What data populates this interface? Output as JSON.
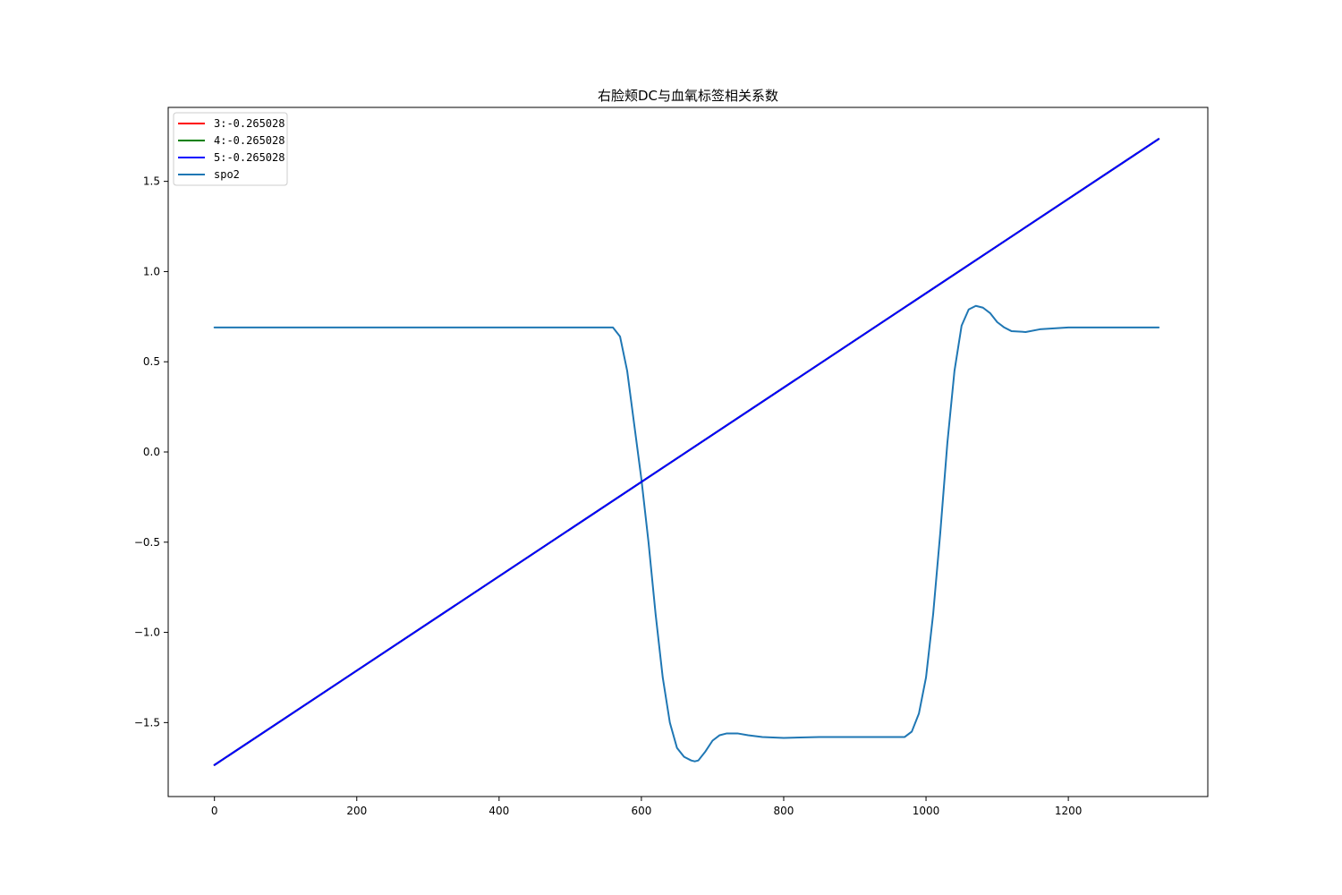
{
  "chart_data": {
    "type": "line",
    "title": "右脸颊DC与血氧标签相关系数",
    "xlabel": "",
    "ylabel": "",
    "xlim": [
      -65,
      1396
    ],
    "ylim": [
      -1.91,
      1.91
    ],
    "xticks": [
      0,
      200,
      400,
      600,
      800,
      1000,
      1200
    ],
    "xtick_labels": [
      "0",
      "200",
      "400",
      "600",
      "800",
      "1000",
      "1200"
    ],
    "yticks": [
      1.5,
      1.0,
      0.5,
      0.0,
      -0.5,
      -1.0,
      -1.5
    ],
    "ytick_labels": [
      "1.5",
      "1.0",
      "0.5",
      "0.0",
      "−0.5",
      "−1.0",
      "−1.5"
    ],
    "grid": false,
    "legend_position": "upper left",
    "series": [
      {
        "name": "3:-0.265028",
        "color": "#ff0000",
        "x": [
          0,
          1327
        ],
        "y": [
          -1.735,
          1.735
        ]
      },
      {
        "name": "4:-0.265028",
        "color": "#008000",
        "x": [
          0,
          1327
        ],
        "y": [
          -1.735,
          1.735
        ]
      },
      {
        "name": "5:-0.265028",
        "color": "#0000ff",
        "x": [
          0,
          1327
        ],
        "y": [
          -1.735,
          1.735
        ]
      },
      {
        "name": "spo2",
        "color": "#1f77b4",
        "x": [
          0,
          100,
          200,
          300,
          400,
          500,
          550,
          560,
          570,
          580,
          590,
          600,
          610,
          620,
          630,
          640,
          650,
          660,
          670,
          675,
          680,
          690,
          700,
          710,
          720,
          735,
          750,
          770,
          800,
          850,
          900,
          960,
          970,
          980,
          990,
          1000,
          1010,
          1020,
          1030,
          1040,
          1050,
          1060,
          1070,
          1080,
          1090,
          1100,
          1110,
          1120,
          1140,
          1160,
          1200,
          1250,
          1327
        ],
        "y": [
          0.69,
          0.69,
          0.69,
          0.69,
          0.69,
          0.69,
          0.69,
          0.69,
          0.64,
          0.45,
          0.15,
          -0.15,
          -0.5,
          -0.9,
          -1.25,
          -1.5,
          -1.64,
          -1.69,
          -1.71,
          -1.715,
          -1.71,
          -1.66,
          -1.6,
          -1.57,
          -1.56,
          -1.56,
          -1.57,
          -1.58,
          -1.585,
          -1.58,
          -1.58,
          -1.58,
          -1.58,
          -1.55,
          -1.45,
          -1.25,
          -0.9,
          -0.45,
          0.05,
          0.45,
          0.7,
          0.79,
          0.81,
          0.8,
          0.77,
          0.72,
          0.69,
          0.67,
          0.665,
          0.68,
          0.69,
          0.69,
          0.69
        ]
      }
    ]
  }
}
